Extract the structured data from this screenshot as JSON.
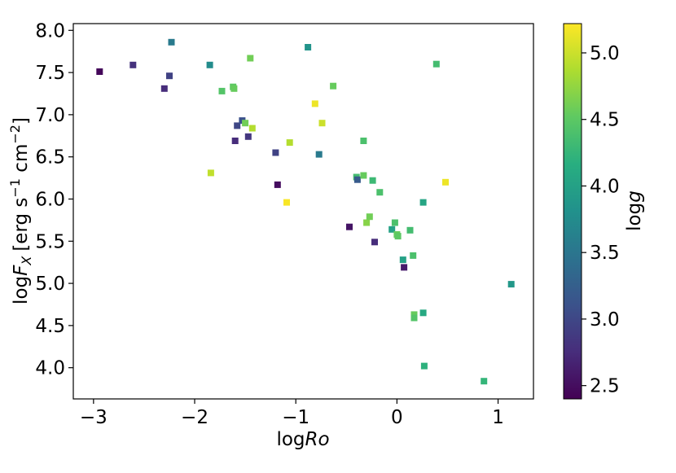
{
  "chart_data": {
    "type": "scatter",
    "title": "",
    "xlabel_prefix": "log",
    "xlabel_var": "Ro",
    "ylabel_prefix": "log",
    "ylabel_var": "F",
    "ylabel_sub": "X",
    "ylabel_units": "[erg s",
    "ylabel_exp1": "−1",
    "ylabel_units2": " cm",
    "ylabel_exp2": "−2",
    "ylabel_close": "]",
    "xlim": [
      -3.2,
      1.35
    ],
    "ylim": [
      3.63,
      8.08
    ],
    "xticks": [
      -3,
      -2,
      -1,
      0,
      1
    ],
    "xtick_labels": [
      "−3",
      "−2",
      "−1",
      "0",
      "1"
    ],
    "yticks": [
      4.0,
      4.5,
      5.0,
      5.5,
      6.0,
      6.5,
      7.0,
      7.5,
      8.0
    ],
    "ytick_labels": [
      "4.0",
      "4.5",
      "5.0",
      "5.5",
      "6.0",
      "6.5",
      "7.0",
      "7.5",
      "8.0"
    ],
    "colorbar": {
      "label_prefix": "log",
      "label_var": "g",
      "colormap": "viridis",
      "range": [
        2.4,
        5.22
      ],
      "ticks": [
        2.5,
        3.0,
        3.5,
        4.0,
        4.5,
        5.0
      ],
      "tick_labels": [
        "2.5",
        "3.0",
        "3.5",
        "4.0",
        "4.5",
        "5.0"
      ]
    },
    "grid": false,
    "points": [
      {
        "x": -2.94,
        "y": 7.51,
        "c": 2.45
      },
      {
        "x": -2.61,
        "y": 7.59,
        "c": 2.8
      },
      {
        "x": -2.3,
        "y": 7.31,
        "c": 2.75
      },
      {
        "x": -2.25,
        "y": 7.46,
        "c": 2.95
      },
      {
        "x": -2.23,
        "y": 7.86,
        "c": 3.55
      },
      {
        "x": -1.85,
        "y": 7.59,
        "c": 3.75
      },
      {
        "x": -1.84,
        "y": 6.31,
        "c": 4.95
      },
      {
        "x": -1.73,
        "y": 7.28,
        "c": 4.45
      },
      {
        "x": -1.62,
        "y": 7.33,
        "c": 4.5
      },
      {
        "x": -1.61,
        "y": 7.31,
        "c": 4.55
      },
      {
        "x": -1.6,
        "y": 6.69,
        "c": 2.75
      },
      {
        "x": -1.58,
        "y": 6.87,
        "c": 3.0
      },
      {
        "x": -1.53,
        "y": 6.93,
        "c": 3.1
      },
      {
        "x": -1.5,
        "y": 6.9,
        "c": 4.6
      },
      {
        "x": -1.47,
        "y": 6.74,
        "c": 2.85
      },
      {
        "x": -1.45,
        "y": 7.67,
        "c": 4.6
      },
      {
        "x": -1.43,
        "y": 6.84,
        "c": 4.9
      },
      {
        "x": -1.2,
        "y": 6.55,
        "c": 2.95
      },
      {
        "x": -1.18,
        "y": 6.17,
        "c": 2.5
      },
      {
        "x": -1.09,
        "y": 5.96,
        "c": 5.2
      },
      {
        "x": -1.06,
        "y": 6.67,
        "c": 4.9
      },
      {
        "x": -0.88,
        "y": 7.8,
        "c": 3.85
      },
      {
        "x": -0.81,
        "y": 7.13,
        "c": 5.15
      },
      {
        "x": -0.77,
        "y": 6.53,
        "c": 3.55
      },
      {
        "x": -0.74,
        "y": 6.9,
        "c": 5.0
      },
      {
        "x": -0.47,
        "y": 5.67,
        "c": 2.55
      },
      {
        "x": -0.63,
        "y": 7.34,
        "c": 4.55
      },
      {
        "x": -0.4,
        "y": 6.26,
        "c": 4.35
      },
      {
        "x": -0.39,
        "y": 6.23,
        "c": 3.2
      },
      {
        "x": -0.33,
        "y": 6.28,
        "c": 4.55
      },
      {
        "x": -0.33,
        "y": 6.69,
        "c": 4.4
      },
      {
        "x": -0.3,
        "y": 5.72,
        "c": 4.7
      },
      {
        "x": -0.27,
        "y": 5.79,
        "c": 4.6
      },
      {
        "x": -0.24,
        "y": 6.22,
        "c": 4.3
      },
      {
        "x": -0.22,
        "y": 5.49,
        "c": 2.75
      },
      {
        "x": -0.17,
        "y": 6.08,
        "c": 4.4
      },
      {
        "x": -0.05,
        "y": 5.64,
        "c": 4.0
      },
      {
        "x": -0.02,
        "y": 5.72,
        "c": 4.4
      },
      {
        "x": 0.0,
        "y": 5.58,
        "c": 4.55
      },
      {
        "x": 0.01,
        "y": 5.56,
        "c": 4.5
      },
      {
        "x": 0.06,
        "y": 5.28,
        "c": 4.0
      },
      {
        "x": 0.07,
        "y": 5.19,
        "c": 2.6
      },
      {
        "x": 0.13,
        "y": 5.63,
        "c": 4.35
      },
      {
        "x": 0.16,
        "y": 5.33,
        "c": 4.4
      },
      {
        "x": 0.17,
        "y": 4.63,
        "c": 4.55
      },
      {
        "x": 0.17,
        "y": 4.59,
        "c": 4.45
      },
      {
        "x": 0.26,
        "y": 5.96,
        "c": 4.05
      },
      {
        "x": 0.26,
        "y": 4.65,
        "c": 4.1
      },
      {
        "x": 0.27,
        "y": 4.02,
        "c": 4.2
      },
      {
        "x": 0.39,
        "y": 7.6,
        "c": 4.35
      },
      {
        "x": 0.48,
        "y": 6.2,
        "c": 5.15
      },
      {
        "x": 0.86,
        "y": 3.84,
        "c": 4.25
      },
      {
        "x": 1.13,
        "y": 4.99,
        "c": 3.9
      }
    ]
  }
}
